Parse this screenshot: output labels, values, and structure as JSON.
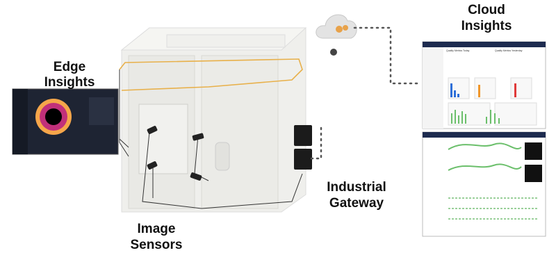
{
  "labels": {
    "edge": [
      "Edge",
      "Insights"
    ],
    "cloud": [
      "Cloud",
      "Insights"
    ],
    "gateway": [
      "Industrial",
      "Gateway"
    ],
    "sensors": [
      "Image",
      "Sensors"
    ]
  },
  "dashboard": {
    "today": "Quality Metrics Today",
    "yesterday": "Quality Metrics Yesterday"
  }
}
